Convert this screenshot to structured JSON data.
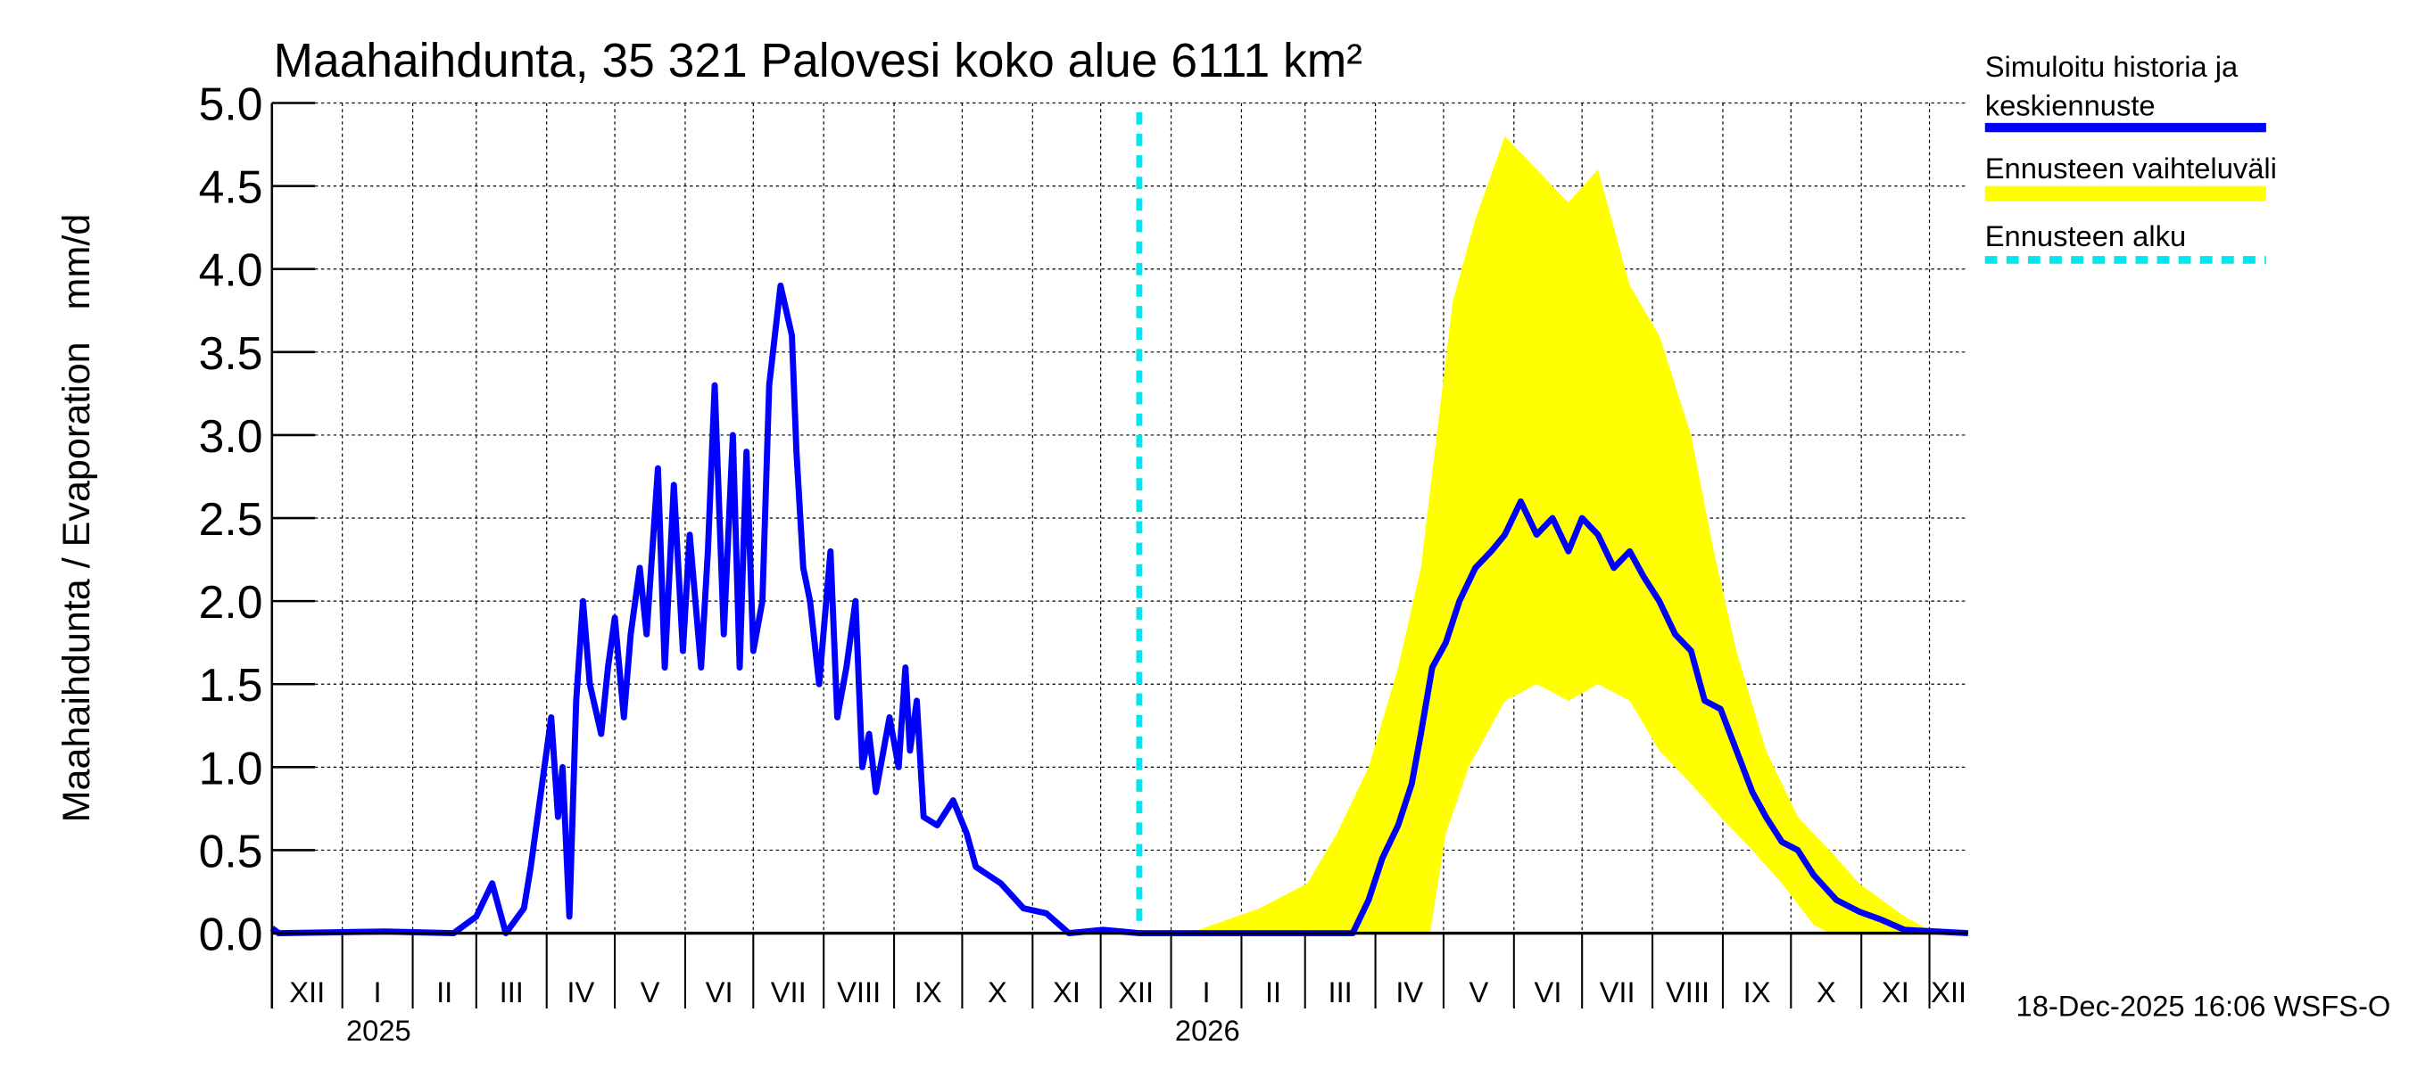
{
  "chart_data": {
    "type": "line",
    "title": "Maahaihdunta, 35 321 Palovesi koko alue 6111 km²",
    "ylabel": "Maahaihdunta / Evaporation   mm/d",
    "xlabel": "",
    "x_unit": "days since 2024-12-01",
    "xlim": [
      0,
      747
    ],
    "ylim": [
      0,
      5
    ],
    "yticks": [
      "0.0",
      "0.5",
      "1.0",
      "1.5",
      "2.0",
      "2.5",
      "3.0",
      "3.5",
      "4.0",
      "4.5",
      "5.0"
    ],
    "grid": true,
    "months": [
      {
        "label": "XII",
        "start": 0
      },
      {
        "label": "I",
        "start": 31
      },
      {
        "label": "II",
        "start": 62
      },
      {
        "label": "III",
        "start": 90
      },
      {
        "label": "IV",
        "start": 121
      },
      {
        "label": "V",
        "start": 151
      },
      {
        "label": "VI",
        "start": 182
      },
      {
        "label": "VII",
        "start": 212
      },
      {
        "label": "VIII",
        "start": 243
      },
      {
        "label": "IX",
        "start": 274
      },
      {
        "label": "X",
        "start": 304
      },
      {
        "label": "XI",
        "start": 335
      },
      {
        "label": "XII",
        "start": 365
      },
      {
        "label": "I",
        "start": 396
      },
      {
        "label": "II",
        "start": 427
      },
      {
        "label": "III",
        "start": 455
      },
      {
        "label": "IV",
        "start": 486
      },
      {
        "label": "V",
        "start": 516
      },
      {
        "label": "VI",
        "start": 547
      },
      {
        "label": "VII",
        "start": 577
      },
      {
        "label": "VIII",
        "start": 608
      },
      {
        "label": "IX",
        "start": 639
      },
      {
        "label": "X",
        "start": 669
      },
      {
        "label": "XI",
        "start": 700
      },
      {
        "label": "XII",
        "start": 730
      }
    ],
    "years": [
      {
        "label": "2025",
        "day": 47
      },
      {
        "label": "2026",
        "day": 412
      }
    ],
    "forecast_start_day": 382,
    "series": [
      {
        "name": "Simuloitu historia ja keskiennuste",
        "color": "#0000ff",
        "points": [
          [
            0,
            0.03
          ],
          [
            3,
            0
          ],
          [
            50,
            0.01
          ],
          [
            80,
            0
          ],
          [
            90,
            0.1
          ],
          [
            97,
            0.3
          ],
          [
            103,
            0
          ],
          [
            111,
            0.15
          ],
          [
            114,
            0.4
          ],
          [
            118,
            0.8
          ],
          [
            123,
            1.3
          ],
          [
            126,
            0.7
          ],
          [
            128,
            1.0
          ],
          [
            131,
            0.1
          ],
          [
            134,
            1.4
          ],
          [
            137,
            2.0
          ],
          [
            140,
            1.5
          ],
          [
            145,
            1.2
          ],
          [
            148,
            1.6
          ],
          [
            151,
            1.9
          ],
          [
            155,
            1.3
          ],
          [
            158,
            1.8
          ],
          [
            162,
            2.2
          ],
          [
            165,
            1.8
          ],
          [
            170,
            2.8
          ],
          [
            173,
            1.6
          ],
          [
            177,
            2.7
          ],
          [
            181,
            1.7
          ],
          [
            184,
            2.4
          ],
          [
            189,
            1.6
          ],
          [
            192,
            2.3
          ],
          [
            195,
            3.3
          ],
          [
            199,
            1.8
          ],
          [
            203,
            3.0
          ],
          [
            206,
            1.6
          ],
          [
            209,
            2.9
          ],
          [
            212,
            1.7
          ],
          [
            216,
            2.0
          ],
          [
            219,
            3.3
          ],
          [
            224,
            3.9
          ],
          [
            229,
            3.6
          ],
          [
            231,
            2.9
          ],
          [
            234,
            2.2
          ],
          [
            237,
            2.0
          ],
          [
            241,
            1.5
          ],
          [
            246,
            2.3
          ],
          [
            249,
            1.3
          ],
          [
            253,
            1.6
          ],
          [
            257,
            2.0
          ],
          [
            260,
            1.0
          ],
          [
            263,
            1.2
          ],
          [
            266,
            0.85
          ],
          [
            272,
            1.3
          ],
          [
            276,
            1.0
          ],
          [
            279,
            1.6
          ],
          [
            281,
            1.1
          ],
          [
            284,
            1.4
          ],
          [
            287,
            0.7
          ],
          [
            293,
            0.65
          ],
          [
            300,
            0.8
          ],
          [
            306,
            0.6
          ],
          [
            310,
            0.4
          ],
          [
            321,
            0.3
          ],
          [
            331,
            0.15
          ],
          [
            341,
            0.12
          ],
          [
            351,
            0
          ],
          [
            366,
            0.02
          ],
          [
            382,
            0
          ],
          [
            476,
            0
          ],
          [
            483,
            0.2
          ],
          [
            489,
            0.45
          ],
          [
            496,
            0.65
          ],
          [
            502,
            0.9
          ],
          [
            506,
            1.2
          ],
          [
            511,
            1.6
          ],
          [
            517,
            1.75
          ],
          [
            523,
            2.0
          ],
          [
            530,
            2.2
          ],
          [
            537,
            2.3
          ],
          [
            543,
            2.4
          ],
          [
            550,
            2.6
          ],
          [
            557,
            2.4
          ],
          [
            564,
            2.5
          ],
          [
            571,
            2.3
          ],
          [
            577,
            2.5
          ],
          [
            584,
            2.4
          ],
          [
            591,
            2.2
          ],
          [
            598,
            2.3
          ],
          [
            604,
            2.15
          ],
          [
            611,
            2.0
          ],
          [
            618,
            1.8
          ],
          [
            625,
            1.7
          ],
          [
            631,
            1.4
          ],
          [
            638,
            1.35
          ],
          [
            645,
            1.1
          ],
          [
            652,
            0.85
          ],
          [
            658,
            0.7
          ],
          [
            665,
            0.55
          ],
          [
            672,
            0.5
          ],
          [
            679,
            0.35
          ],
          [
            689,
            0.2
          ],
          [
            699,
            0.13
          ],
          [
            709,
            0.08
          ],
          [
            719,
            0.02
          ],
          [
            747,
            0
          ]
        ]
      },
      {
        "name": "Ennusteen vaihteluväli",
        "color": "#ffff00",
        "upper": [
          [
            382,
            0
          ],
          [
            408,
            0.02
          ],
          [
            435,
            0.15
          ],
          [
            456,
            0.3
          ],
          [
            469,
            0.6
          ],
          [
            483,
            1.0
          ],
          [
            496,
            1.6
          ],
          [
            506,
            2.2
          ],
          [
            513,
            3.0
          ],
          [
            520,
            3.8
          ],
          [
            530,
            4.3
          ],
          [
            543,
            4.8
          ],
          [
            557,
            4.6
          ],
          [
            571,
            4.4
          ],
          [
            584,
            4.6
          ],
          [
            598,
            3.9
          ],
          [
            611,
            3.6
          ],
          [
            625,
            3.0
          ],
          [
            635,
            2.3
          ],
          [
            645,
            1.7
          ],
          [
            658,
            1.1
          ],
          [
            672,
            0.7
          ],
          [
            686,
            0.5
          ],
          [
            699,
            0.3
          ],
          [
            719,
            0.1
          ],
          [
            730,
            0.02
          ],
          [
            747,
            0
          ]
        ],
        "lower": [
          [
            382,
            0
          ],
          [
            489,
            0
          ],
          [
            510,
            0
          ],
          [
            517,
            0.6
          ],
          [
            527,
            1.0
          ],
          [
            543,
            1.4
          ],
          [
            557,
            1.5
          ],
          [
            571,
            1.4
          ],
          [
            584,
            1.5
          ],
          [
            598,
            1.4
          ],
          [
            611,
            1.1
          ],
          [
            625,
            0.9
          ],
          [
            638,
            0.7
          ],
          [
            652,
            0.5
          ],
          [
            665,
            0.3
          ],
          [
            679,
            0.05
          ],
          [
            686,
            0
          ],
          [
            747,
            0
          ]
        ]
      }
    ],
    "legend": {
      "placement": "right",
      "entries": [
        {
          "label_line1": "Simuloitu historia ja",
          "label_line2": "keskiennuste",
          "color": "#0000ff"
        },
        {
          "label": "Ennusteen vaihteluväli",
          "color": "#ffff00"
        },
        {
          "label": "Ennusteen alku",
          "color": "#00e5ee"
        }
      ]
    },
    "footer": "18-Dec-2025 16:06 WSFS-O"
  }
}
